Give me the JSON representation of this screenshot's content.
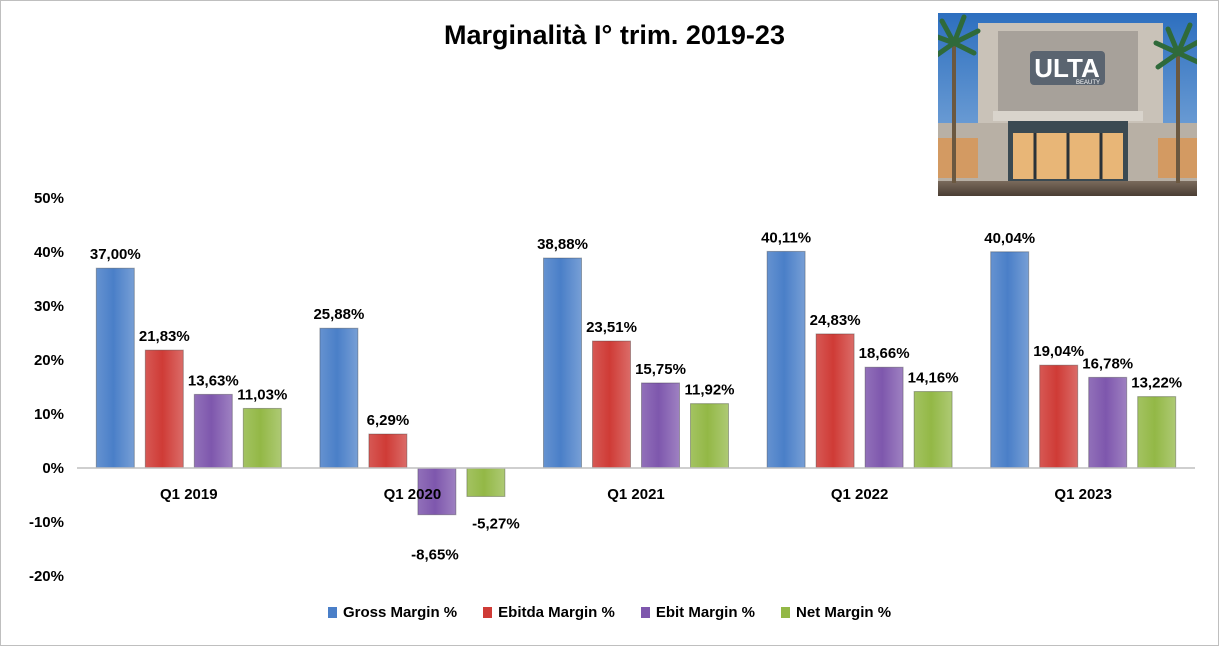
{
  "chart_data": {
    "type": "bar",
    "title": "Marginalità I° trim. 2019-23",
    "categories": [
      "Q1 2019",
      "Q1 2020",
      "Q1 2021",
      "Q1 2022",
      "Q1 2023"
    ],
    "series": [
      {
        "name": "Gross Margin %",
        "color": "#4a7fc8",
        "values": [
          37.0,
          25.88,
          38.88,
          40.11,
          40.04
        ],
        "labels": [
          "37,00%",
          "25,88%",
          "38,88%",
          "40,11%",
          "40,04%"
        ]
      },
      {
        "name": "Ebitda Margin %",
        "color": "#cf3b36",
        "values": [
          21.83,
          6.29,
          23.51,
          24.83,
          19.04
        ],
        "labels": [
          "21,83%",
          "6,29%",
          "23,51%",
          "24,83%",
          "19,04%"
        ]
      },
      {
        "name": "Ebit Margin %",
        "color": "#7e57ad",
        "values": [
          13.63,
          -8.65,
          15.75,
          18.66,
          16.78
        ],
        "labels": [
          "13,63%",
          "-8,65%",
          "15,75%",
          "18,66%",
          "16,78%"
        ]
      },
      {
        "name": "Net Margin %",
        "color": "#93b846",
        "values": [
          11.03,
          -5.27,
          11.92,
          14.16,
          13.22
        ],
        "labels": [
          "11,03%",
          "-5,27%",
          "11,92%",
          "14,16%",
          "13,22%"
        ]
      }
    ],
    "yticks": [
      50,
      40,
      30,
      20,
      10,
      0,
      -10,
      -20
    ],
    "ytick_labels": [
      "50%",
      "40%",
      "30%",
      "20%",
      "10%",
      "0%",
      "-10%",
      "-20%"
    ],
    "ylim": [
      -20,
      50
    ],
    "grid": false,
    "legend_position": "bottom"
  },
  "photo": {
    "sign_text": "ULTA",
    "sign_subtext": "BEAUTY"
  }
}
